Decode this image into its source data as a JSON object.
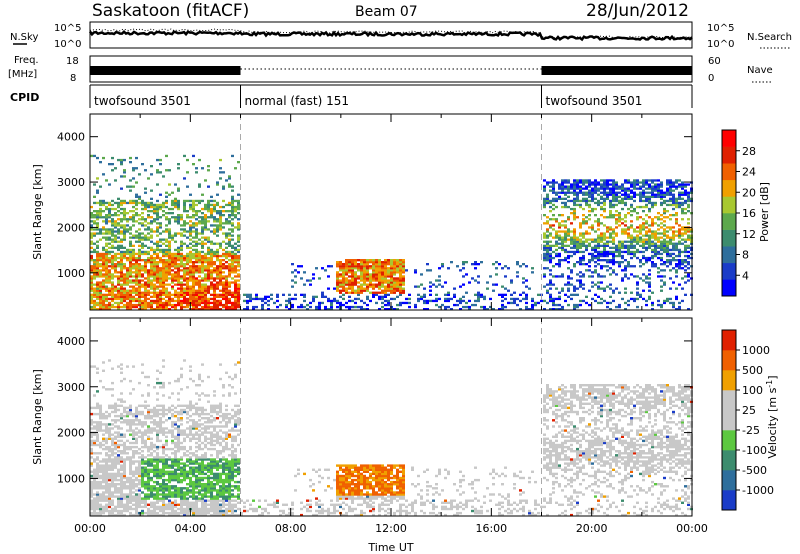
{
  "header": {
    "station": "Saskatoon (fitACF)",
    "beam": "Beam 07",
    "date": "28/Jun/2012"
  },
  "panel_labels": {
    "nsky": "N.Sky",
    "nsearch": "N.Search",
    "freq": "Freq.",
    "freq_unit": "[MHz]",
    "nave": "Nave",
    "cpid": "CPID"
  },
  "cpid_segments": [
    {
      "label": "twofsound 3501",
      "start_h": 0,
      "end_h": 6
    },
    {
      "label": "normal (fast) 151",
      "start_h": 6,
      "end_h": 18
    },
    {
      "label": "twofsound 3501",
      "start_h": 18,
      "end_h": 24
    }
  ],
  "noise_axis": {
    "left_ticks": [
      "10^5",
      "10^0"
    ],
    "right_ticks": [
      "10^5",
      "10^0"
    ]
  },
  "freq_axis": {
    "left_ticks": [
      "18",
      "8"
    ],
    "right_ticks": [
      "60",
      "0"
    ]
  },
  "chart_data": [
    {
      "type": "heatmap",
      "title": "Power",
      "ylabel": "Slant Range [km]",
      "xlabel": "",
      "xlim_hours": [
        0,
        24
      ],
      "ylim": [
        180,
        4500
      ],
      "yticks": [
        1000,
        2000,
        3000,
        4000
      ],
      "colorbar": {
        "label": "Power [dB]",
        "ticks": [
          "28",
          "24",
          "20",
          "16",
          "12",
          "8",
          "4"
        ],
        "colors": [
          "#0000ff",
          "#1a3cc8",
          "#2e6e9c",
          "#3c8c6e",
          "#5ca84c",
          "#a8c830",
          "#f0a000",
          "#f06000",
          "#e02000",
          "#ff0000"
        ]
      },
      "mode_boundaries_h": [
        6,
        18
      ]
    },
    {
      "type": "heatmap",
      "title": "Velocity",
      "ylabel": "Slant Range [km]",
      "xlabel": "Time UT",
      "xlim_hours": [
        0,
        24
      ],
      "ylim": [
        180,
        4500
      ],
      "yticks": [
        1000,
        2000,
        3000,
        4000
      ],
      "xtick_labels": [
        "00:00",
        "04:00",
        "08:00",
        "12:00",
        "16:00",
        "20:00",
        "00:00"
      ],
      "colorbar": {
        "label": "Velocity [m s",
        "label_sup": "-1",
        "label_end": "]",
        "ticks": [
          "1000",
          "500",
          "100",
          "25",
          "-25",
          "-100",
          "-500",
          "-1000"
        ],
        "colors": [
          "#1a3cc8",
          "#2e6e9c",
          "#3c8c6e",
          "#5cc840",
          "#c8c8c8",
          "#c8c8c8",
          "#f0a000",
          "#f06000",
          "#e02000"
        ]
      },
      "mode_boundaries_h": [
        6,
        18
      ]
    }
  ]
}
